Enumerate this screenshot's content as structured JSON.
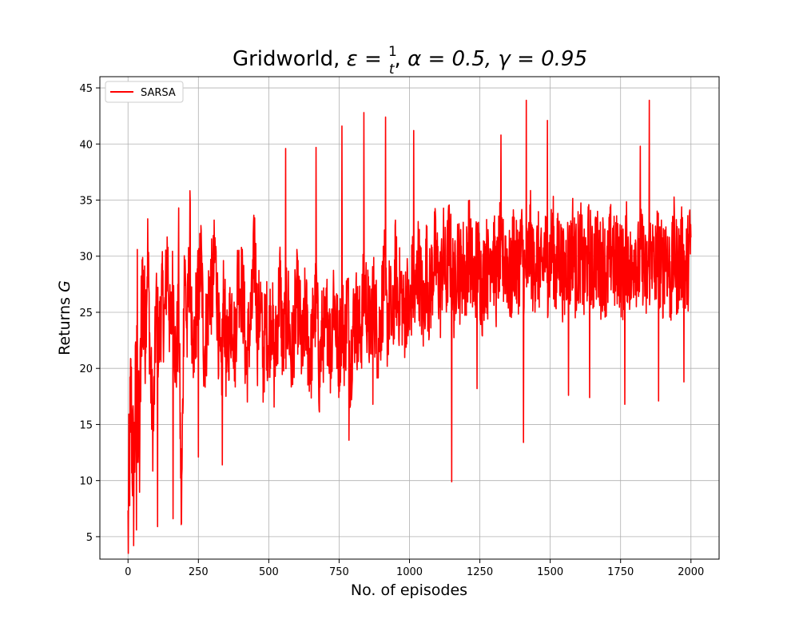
{
  "chart_data": {
    "type": "line",
    "title": {
      "prefix": "Gridworld, ",
      "epsilon_symbol": "ε",
      "epsilon_numerator": "1",
      "epsilon_denominator": "t",
      "alpha_part": "α = 0.5, ",
      "gamma_part": "γ = 0.95"
    },
    "xlabel": "No. of episodes",
    "ylabel": {
      "text": "Returns ",
      "symbol": "G"
    },
    "xlim": [
      -100,
      2100
    ],
    "ylim": [
      3.0,
      46.0
    ],
    "xticks": [
      0,
      250,
      500,
      750,
      1000,
      1250,
      1500,
      1750,
      2000
    ],
    "yticks": [
      5,
      10,
      15,
      20,
      25,
      30,
      35,
      40,
      45
    ],
    "grid": true,
    "legend": {
      "position": "top-left"
    },
    "series": [
      {
        "name": "SARSA",
        "color": "#ff0000",
        "x_start": 0,
        "x_step": 10,
        "values": [
          5.1,
          17.4,
          9.8,
          20.1,
          11.2,
          28.4,
          22.1,
          30.6,
          19.3,
          14.2,
          25.6,
          21.8,
          26.4,
          24.1,
          30.8,
          22.4,
          28.1,
          19.6,
          25.9,
          6.0,
          30.1,
          22.7,
          31.9,
          18.2,
          24.6,
          26.9,
          29.8,
          21.3,
          23.7,
          27.4,
          27.0,
          30.3,
          24.1,
          18.4,
          26.8,
          20.2,
          23.6,
          25.4,
          21.7,
          28.3,
          27.7,
          26.0,
          19.9,
          23.2,
          24.8,
          31.5,
          22.9,
          26.3,
          20.6,
          24.4,
          22.3,
          25.7,
          19.8,
          23.9,
          27.8,
          21.5,
          24.2,
          25.1,
          20.4,
          23.6,
          26.2,
          24.4,
          20.7,
          25.6,
          22.1,
          21.0,
          24.7,
          26.1,
          19.4,
          23.3,
          22.6,
          25.2,
          20.9,
          27.1,
          23.4,
          21.4,
          24.9,
          22.2,
          26.4,
          20.3,
          23.8,
          25.0,
          22.9,
          24.1,
          27.6,
          25.3,
          23.0,
          26.7,
          24.5,
          22.4,
          25.1,
          28.3,
          24.0,
          26.0,
          23.2,
          29.1,
          25.8,
          27.2,
          24.3,
          26.6,
          23.9,
          28.0,
          25.4,
          29.7,
          27.3,
          24.6,
          29.5,
          26.1,
          28.2,
          30.2,
          28.5,
          26.8,
          30.4,
          27.6,
          31.1,
          28.9,
          26.5,
          30.7,
          28.1,
          29.4,
          27.8,
          31.5,
          29.0,
          27.4,
          30.1,
          28.6,
          26.9,
          29.9,
          28.3,
          31.2,
          29.7,
          27.5,
          30.6,
          28.8,
          30.3,
          29.1,
          27.2,
          31.0,
          28.7,
          29.6,
          30.8,
          27.9,
          29.2,
          31.4,
          28.4,
          30.0,
          29.5,
          27.7,
          30.9,
          28.9,
          29.8,
          31.3,
          28.0,
          30.5,
          29.3,
          27.6,
          30.2,
          29.0,
          31.6,
          28.6,
          29.9,
          30.4,
          27.8,
          29.4,
          31.0,
          28.2,
          30.7,
          29.6,
          28.8,
          30.1,
          27.5,
          29.7,
          31.2,
          28.5,
          30.3,
          29.1,
          28.3,
          30.6,
          29.4,
          27.9,
          31.5,
          28.7,
          29.8,
          30.0,
          27.4,
          29.2,
          30.9,
          28.1,
          30.5,
          29.3,
          28.6,
          31.1,
          29.0,
          27.7,
          30.8,
          28.9,
          29.5,
          30.2,
          28.4,
          29.6,
          31.3
        ]
      }
    ],
    "extremes": [
      {
        "x": 30,
        "y": 5.6
      },
      {
        "x": 33,
        "y": 30.6
      },
      {
        "x": 105,
        "y": 5.9
      },
      {
        "x": 160,
        "y": 6.6
      },
      {
        "x": 180,
        "y": 34.3
      },
      {
        "x": 250,
        "y": 12.1
      },
      {
        "x": 335,
        "y": 11.4
      },
      {
        "x": 560,
        "y": 39.6
      },
      {
        "x": 668,
        "y": 39.7
      },
      {
        "x": 760,
        "y": 41.6
      },
      {
        "x": 785,
        "y": 13.6
      },
      {
        "x": 838,
        "y": 42.8
      },
      {
        "x": 870,
        "y": 16.8
      },
      {
        "x": 915,
        "y": 42.4
      },
      {
        "x": 1015,
        "y": 41.2
      },
      {
        "x": 1150,
        "y": 9.9
      },
      {
        "x": 1240,
        "y": 18.2
      },
      {
        "x": 1325,
        "y": 40.8
      },
      {
        "x": 1405,
        "y": 13.4
      },
      {
        "x": 1415,
        "y": 43.9
      },
      {
        "x": 1490,
        "y": 42.1
      },
      {
        "x": 1565,
        "y": 17.6
      },
      {
        "x": 1640,
        "y": 17.4
      },
      {
        "x": 1765,
        "y": 16.8
      },
      {
        "x": 1820,
        "y": 39.8
      },
      {
        "x": 1852,
        "y": 43.9
      },
      {
        "x": 1885,
        "y": 17.1
      },
      {
        "x": 1975,
        "y": 18.8
      }
    ],
    "noise_amplitude": 4.5
  }
}
